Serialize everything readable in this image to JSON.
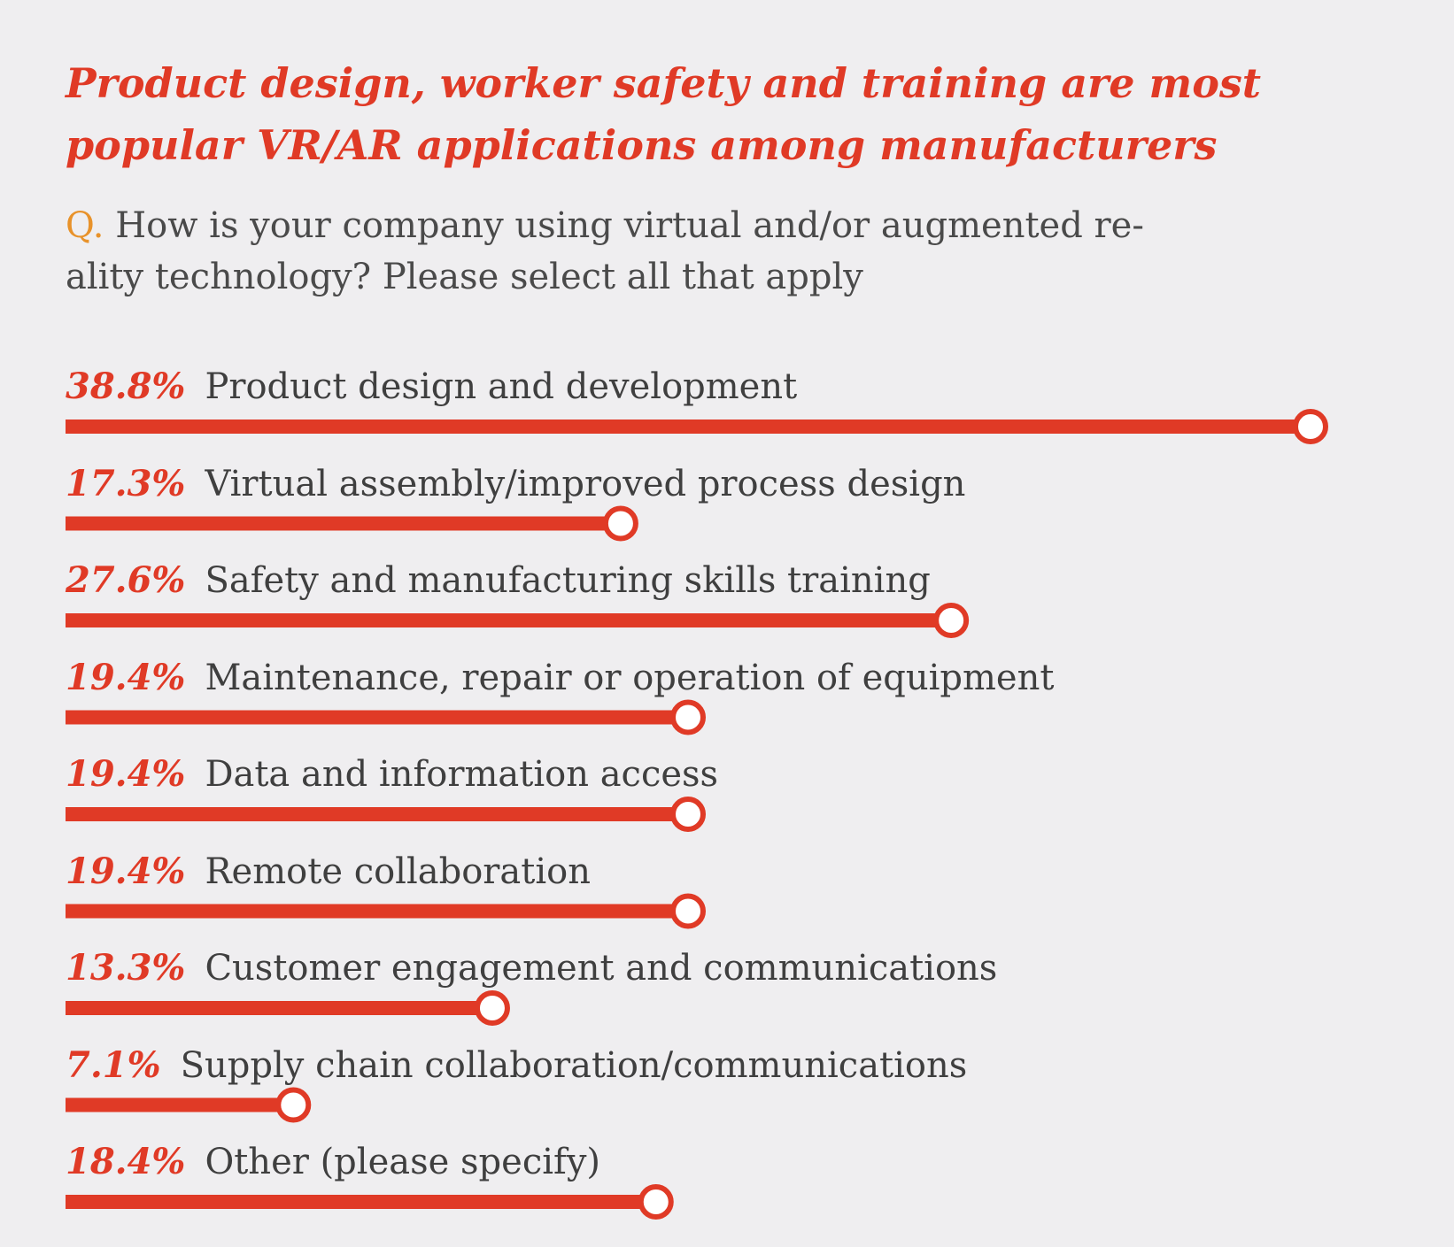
{
  "title": {
    "line1": "Product design, worker safety and training are most",
    "line2": "popular VR/AR applications among manufacturers"
  },
  "question": {
    "prefix": "Q.",
    "line1": " How is your company using virtual and/or augmented re-",
    "line2": "ality technology? Please select all that apply"
  },
  "colors": {
    "accent": "#e03a26",
    "question_prefix": "#e8922a",
    "text": "#3f3f3f",
    "background": "#efeef0",
    "marker_fill": "#ffffff"
  },
  "chart_data": {
    "type": "bar",
    "orientation": "horizontal",
    "unit": "%",
    "categories": [
      "Product design and development",
      "Virtual assembly/improved process design",
      "Safety and manufacturing skills training",
      "Maintenance, repair or operation of equipment",
      "Data and information access",
      "Remote collaboration",
      "Customer engagement and communications",
      "Supply chain collaboration/communications",
      "Other (please specify)"
    ],
    "values": [
      38.8,
      17.3,
      27.6,
      19.4,
      19.4,
      19.4,
      13.3,
      7.1,
      18.4
    ],
    "value_labels": [
      "38.8%",
      "17.3%",
      "27.6%",
      "19.4%",
      "19.4%",
      "19.4%",
      "13.3%",
      "7.1%",
      "18.4%"
    ],
    "xlim": [
      0,
      38.8
    ],
    "grid": false,
    "legend": "none"
  }
}
